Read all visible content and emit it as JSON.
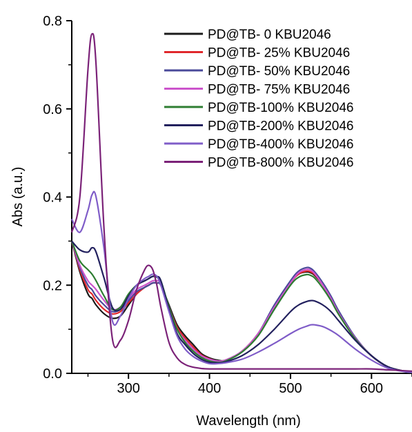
{
  "chart_data": {
    "type": "line",
    "title": "",
    "xlabel": "Wavelength (nm)",
    "ylabel": "Abs (a.u.)",
    "xlim": [
      230,
      650
    ],
    "ylim": [
      0,
      0.8
    ],
    "x_ticks": [
      300,
      400,
      500,
      600
    ],
    "y_ticks": [
      0.0,
      0.2,
      0.4,
      0.6,
      0.8
    ],
    "x_tick_labels": [
      "300",
      "400",
      "500",
      "600"
    ],
    "y_tick_labels": [
      "0.0",
      "0.2",
      "0.4",
      "0.6",
      "0.8"
    ],
    "grid": false,
    "legend_position": "top-right",
    "x": [
      230,
      240,
      250,
      255,
      260,
      270,
      280,
      290,
      300,
      310,
      320,
      325,
      330,
      335,
      340,
      350,
      360,
      370,
      380,
      390,
      400,
      410,
      420,
      440,
      460,
      480,
      500,
      510,
      520,
      525,
      530,
      540,
      550,
      560,
      580,
      600,
      620,
      640,
      650
    ],
    "series": [
      {
        "name": "PD@TB- 0 KBU2046",
        "color": "#1a1a1a",
        "values": [
          0.3,
          0.23,
          0.18,
          0.17,
          0.155,
          0.135,
          0.125,
          0.13,
          0.155,
          0.18,
          0.195,
          0.2,
          0.205,
          0.205,
          0.2,
          0.155,
          0.11,
          0.085,
          0.065,
          0.045,
          0.035,
          0.03,
          0.03,
          0.05,
          0.09,
          0.15,
          0.205,
          0.225,
          0.23,
          0.228,
          0.222,
          0.2,
          0.17,
          0.135,
          0.08,
          0.04,
          0.015,
          0.005,
          0.003
        ]
      },
      {
        "name": "PD@TB- 25% KBU2046",
        "color": "#e0282c",
        "values": [
          0.3,
          0.235,
          0.19,
          0.18,
          0.165,
          0.145,
          0.135,
          0.14,
          0.16,
          0.18,
          0.195,
          0.2,
          0.205,
          0.205,
          0.2,
          0.15,
          0.105,
          0.08,
          0.06,
          0.042,
          0.033,
          0.028,
          0.03,
          0.05,
          0.09,
          0.15,
          0.205,
          0.225,
          0.232,
          0.23,
          0.224,
          0.2,
          0.17,
          0.135,
          0.08,
          0.04,
          0.015,
          0.005,
          0.003
        ]
      },
      {
        "name": "PD@TB- 50% KBU2046",
        "color": "#4a4a9a",
        "values": [
          0.3,
          0.24,
          0.2,
          0.19,
          0.175,
          0.155,
          0.14,
          0.145,
          0.165,
          0.185,
          0.195,
          0.2,
          0.205,
          0.205,
          0.2,
          0.15,
          0.1,
          0.075,
          0.055,
          0.04,
          0.032,
          0.028,
          0.03,
          0.05,
          0.09,
          0.155,
          0.21,
          0.232,
          0.24,
          0.238,
          0.23,
          0.205,
          0.175,
          0.14,
          0.082,
          0.04,
          0.015,
          0.005,
          0.003
        ]
      },
      {
        "name": "PD@TB- 75% KBU2046",
        "color": "#cc55cc",
        "values": [
          0.3,
          0.245,
          0.21,
          0.2,
          0.19,
          0.165,
          0.145,
          0.15,
          0.17,
          0.19,
          0.2,
          0.205,
          0.21,
          0.21,
          0.205,
          0.15,
          0.1,
          0.075,
          0.055,
          0.04,
          0.032,
          0.028,
          0.03,
          0.05,
          0.09,
          0.15,
          0.205,
          0.228,
          0.236,
          0.234,
          0.226,
          0.2,
          0.17,
          0.135,
          0.08,
          0.04,
          0.015,
          0.005,
          0.003
        ]
      },
      {
        "name": "PD@TB-100% KBU2046",
        "color": "#2e7d32",
        "values": [
          0.3,
          0.255,
          0.235,
          0.225,
          0.21,
          0.175,
          0.145,
          0.15,
          0.18,
          0.2,
          0.21,
          0.215,
          0.22,
          0.218,
          0.21,
          0.15,
          0.1,
          0.07,
          0.05,
          0.036,
          0.028,
          0.025,
          0.028,
          0.048,
          0.085,
          0.145,
          0.2,
          0.218,
          0.224,
          0.222,
          0.216,
          0.193,
          0.165,
          0.132,
          0.078,
          0.04,
          0.015,
          0.005,
          0.003
        ]
      },
      {
        "name": "PD@TB-200% KBU2046",
        "color": "#22205e",
        "values": [
          0.3,
          0.28,
          0.275,
          0.285,
          0.275,
          0.215,
          0.15,
          0.145,
          0.175,
          0.2,
          0.21,
          0.215,
          0.22,
          0.22,
          0.21,
          0.145,
          0.09,
          0.065,
          0.045,
          0.032,
          0.025,
          0.024,
          0.026,
          0.04,
          0.065,
          0.1,
          0.14,
          0.155,
          0.163,
          0.165,
          0.164,
          0.155,
          0.14,
          0.118,
          0.075,
          0.04,
          0.015,
          0.005,
          0.003
        ]
      },
      {
        "name": "PD@TB-400% KBU2046",
        "color": "#7f5cc8",
        "values": [
          0.35,
          0.32,
          0.37,
          0.405,
          0.4,
          0.28,
          0.12,
          0.13,
          0.17,
          0.2,
          0.215,
          0.22,
          0.225,
          0.22,
          0.2,
          0.14,
          0.085,
          0.055,
          0.038,
          0.028,
          0.022,
          0.022,
          0.024,
          0.032,
          0.048,
          0.068,
          0.09,
          0.1,
          0.107,
          0.11,
          0.11,
          0.106,
          0.097,
          0.085,
          0.055,
          0.03,
          0.012,
          0.004,
          0.002
        ]
      },
      {
        "name": "PD@TB-800% KBU2046",
        "color": "#7b2278",
        "values": [
          0.32,
          0.4,
          0.69,
          0.77,
          0.7,
          0.32,
          0.08,
          0.075,
          0.12,
          0.19,
          0.235,
          0.245,
          0.235,
          0.2,
          0.15,
          0.07,
          0.035,
          0.02,
          0.014,
          0.011,
          0.01,
          0.01,
          0.01,
          0.01,
          0.01,
          0.01,
          0.01,
          0.01,
          0.01,
          0.01,
          0.01,
          0.01,
          0.01,
          0.01,
          0.01,
          0.01,
          0.008,
          0.006,
          0.005
        ]
      }
    ]
  }
}
